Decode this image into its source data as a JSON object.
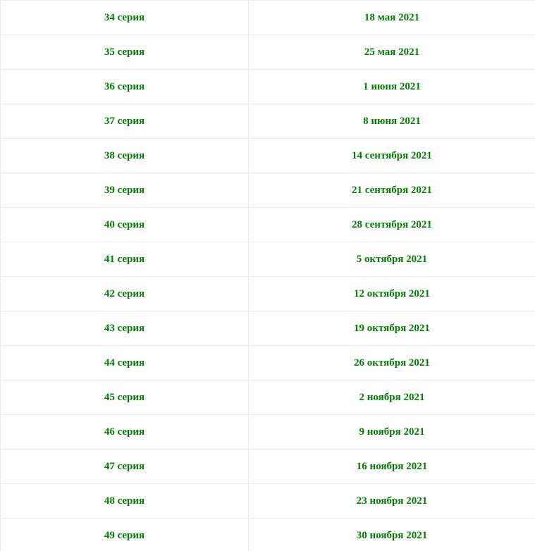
{
  "accent_color": "#008000",
  "rows": [
    {
      "episode": "34 серия",
      "date": "18 мая 2021"
    },
    {
      "episode": "35 серия",
      "date": "25 мая 2021"
    },
    {
      "episode": "36 серия",
      "date": "1 июня 2021"
    },
    {
      "episode": "37 серия",
      "date": "8 июня 2021"
    },
    {
      "episode": "38 серия",
      "date": "14 сентября 2021"
    },
    {
      "episode": "39 серия",
      "date": "21 сентября 2021"
    },
    {
      "episode": "40 серия",
      "date": "28 сентября 2021"
    },
    {
      "episode": "41 серия",
      "date": "5 октября 2021"
    },
    {
      "episode": "42 серия",
      "date": "12 октября 2021"
    },
    {
      "episode": "43 серия",
      "date": "19 октября 2021"
    },
    {
      "episode": "44 серия",
      "date": "26 октября 2021"
    },
    {
      "episode": "45 серия",
      "date": "2 ноября 2021"
    },
    {
      "episode": "46 серия",
      "date": "9 ноября 2021"
    },
    {
      "episode": "47 серия",
      "date": "16 ноября 2021"
    },
    {
      "episode": "48 серия",
      "date": "23 ноября 2021"
    },
    {
      "episode": "49 серия",
      "date": "30 ноября 2021"
    }
  ]
}
